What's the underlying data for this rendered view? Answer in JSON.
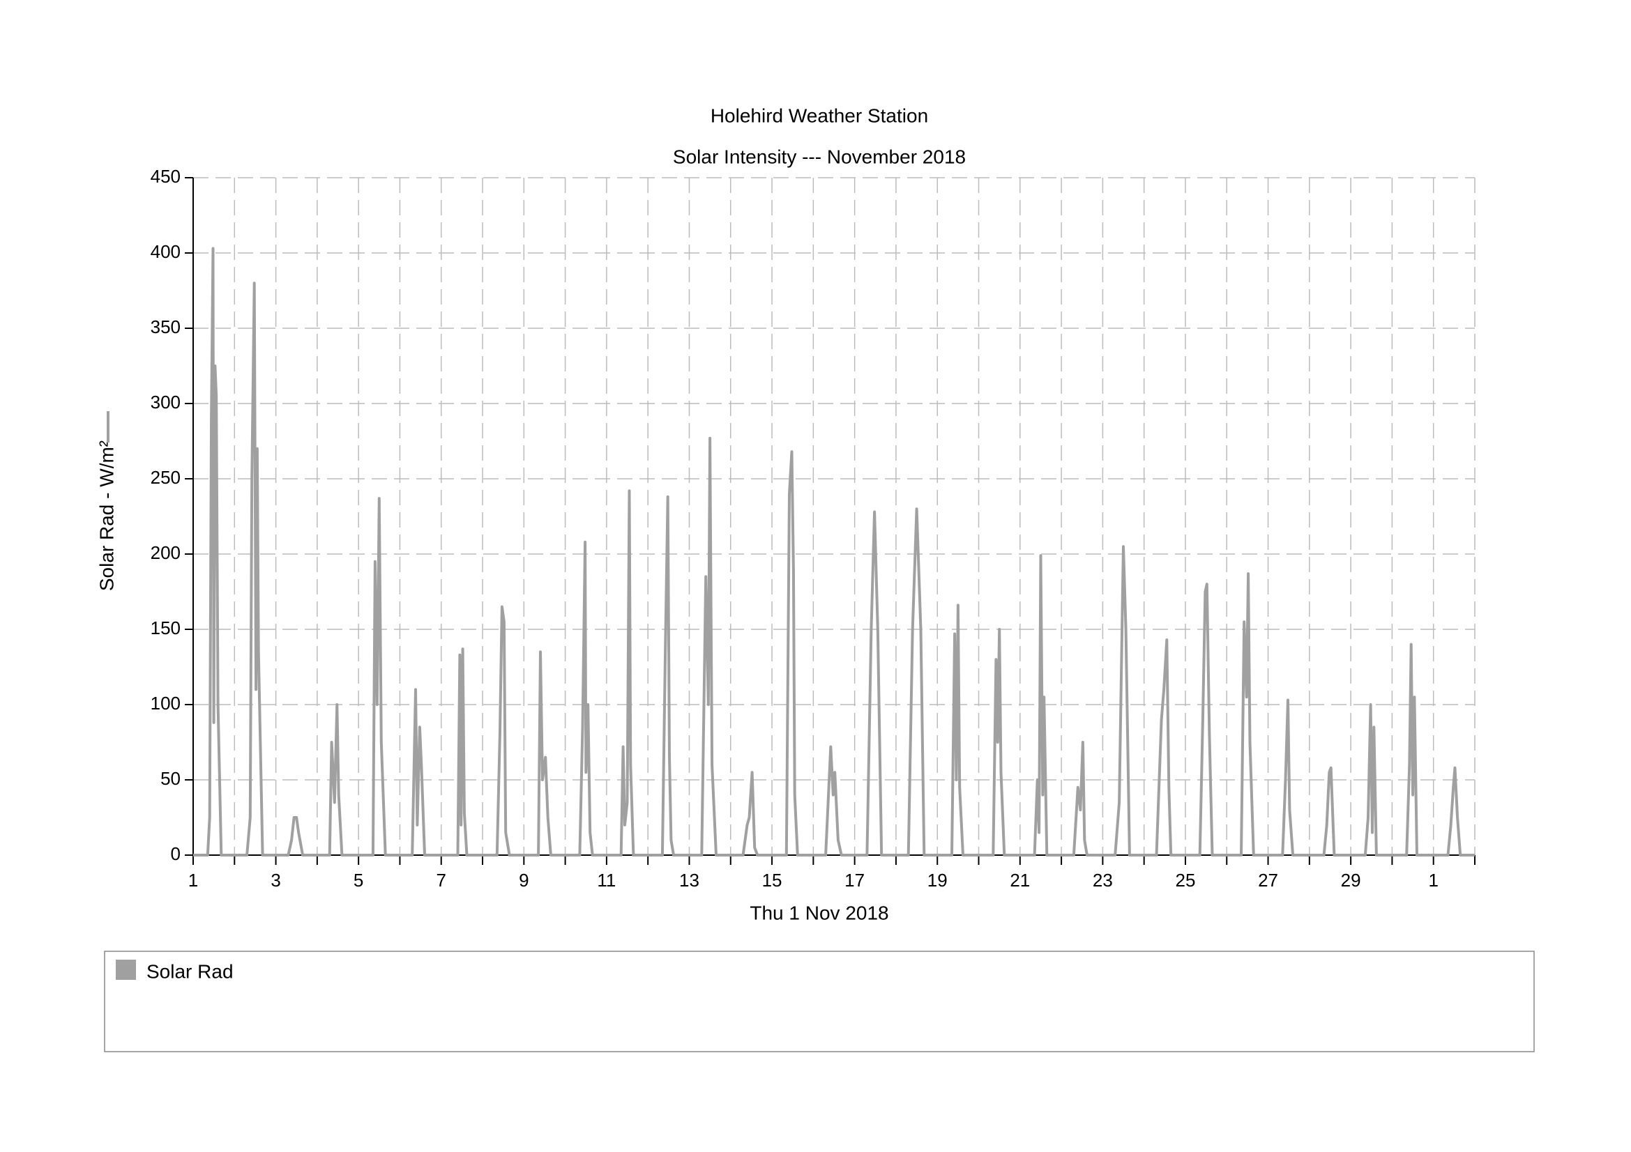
{
  "chart_data": {
    "type": "line",
    "title": "Holehird Weather Station",
    "subtitle": "Solar Intensity --- November 2018",
    "xlabel": "Thu 1 Nov 2018",
    "ylabel": "Solar Rad - W/m²",
    "x": [
      1,
      1.35,
      1.4,
      1.44,
      1.48,
      1.5,
      1.53,
      1.56,
      1.6,
      1.68,
      2.3,
      2.38,
      2.42,
      2.48,
      2.52,
      2.55,
      2.58,
      2.68,
      3.3,
      3.38,
      3.44,
      3.5,
      3.55,
      3.65,
      4.3,
      4.35,
      4.42,
      4.48,
      4.52,
      4.6,
      5.35,
      5.4,
      5.45,
      5.5,
      5.55,
      5.65,
      6.3,
      6.38,
      6.42,
      6.48,
      6.52,
      6.6,
      7.4,
      7.45,
      7.48,
      7.52,
      7.56,
      7.62,
      8.35,
      8.42,
      8.47,
      8.52,
      8.56,
      8.65,
      9.35,
      9.4,
      9.45,
      9.52,
      9.58,
      9.65,
      10.35,
      10.42,
      10.48,
      10.5,
      10.55,
      10.6,
      10.66,
      11.35,
      11.4,
      11.44,
      11.5,
      11.55,
      11.58,
      11.65,
      12.35,
      12.42,
      12.48,
      12.52,
      12.56,
      12.62,
      13.3,
      13.4,
      13.46,
      13.5,
      13.55,
      13.65,
      14.3,
      14.4,
      14.45,
      14.52,
      14.58,
      14.65,
      15.35,
      15.42,
      15.48,
      15.52,
      15.55,
      15.62,
      16.3,
      16.42,
      16.48,
      16.52,
      16.6,
      16.68,
      17.3,
      17.4,
      17.48,
      17.56,
      17.65,
      18.3,
      18.4,
      18.5,
      18.6,
      18.68,
      19.35,
      19.42,
      19.46,
      19.5,
      19.54,
      19.62,
      20.35,
      20.42,
      20.46,
      20.5,
      20.54,
      20.62,
      21.35,
      21.42,
      21.46,
      21.5,
      21.55,
      21.58,
      21.65,
      22.3,
      22.4,
      22.46,
      22.52,
      22.56,
      22.62,
      23.3,
      23.4,
      23.5,
      23.56,
      23.65,
      24.3,
      24.42,
      24.48,
      24.55,
      24.6,
      24.65,
      25.35,
      25.42,
      25.48,
      25.52,
      25.58,
      25.65,
      26.35,
      26.42,
      26.48,
      26.52,
      26.56,
      26.65,
      27.35,
      27.42,
      27.48,
      27.52,
      27.6,
      28.35,
      28.42,
      28.48,
      28.52,
      28.6,
      29.35,
      29.42,
      29.48,
      29.52,
      29.56,
      29.62,
      30.35,
      30.42,
      30.46,
      30.5,
      30.54,
      30.6,
      31.35,
      31.42,
      31.48,
      31.52,
      31.58,
      31.65,
      32
    ],
    "series": [
      {
        "name": "Solar Rad",
        "color": "#a0a0a0",
        "values": [
          0,
          0,
          25,
          290,
          403,
          88,
          325,
          305,
          100,
          0,
          0,
          25,
          250,
          380,
          110,
          270,
          135,
          0,
          0,
          10,
          25,
          25,
          15,
          0,
          0,
          75,
          35,
          100,
          40,
          0,
          0,
          195,
          100,
          237,
          75,
          0,
          0,
          110,
          20,
          85,
          60,
          0,
          0,
          133,
          20,
          137,
          28,
          0,
          0,
          80,
          165,
          155,
          15,
          0,
          0,
          135,
          50,
          65,
          25,
          0,
          0,
          85,
          208,
          55,
          100,
          15,
          0,
          0,
          72,
          20,
          35,
          242,
          60,
          0,
          0,
          135,
          238,
          65,
          10,
          0,
          0,
          185,
          100,
          277,
          60,
          0,
          0,
          20,
          25,
          55,
          5,
          0,
          0,
          240,
          268,
          190,
          40,
          0,
          0,
          72,
          40,
          55,
          10,
          0,
          0,
          150,
          228,
          150,
          0,
          0,
          150,
          230,
          150,
          0,
          0,
          147,
          50,
          166,
          45,
          0,
          0,
          130,
          75,
          150,
          55,
          0,
          0,
          50,
          15,
          199,
          40,
          105,
          0,
          0,
          45,
          30,
          75,
          10,
          0,
          0,
          35,
          205,
          150,
          0,
          0,
          90,
          110,
          143,
          45,
          0,
          0,
          90,
          175,
          180,
          80,
          0,
          0,
          155,
          105,
          187,
          75,
          0,
          0,
          50,
          103,
          30,
          0,
          0,
          20,
          55,
          58,
          0,
          0,
          25,
          100,
          15,
          85,
          0,
          0,
          60,
          140,
          40,
          105,
          0,
          0,
          20,
          45,
          58,
          25,
          0,
          0
        ]
      }
    ],
    "xlim": [
      1,
      32
    ],
    "ylim": [
      0,
      450
    ],
    "xticks": [
      1,
      3,
      5,
      7,
      9,
      11,
      13,
      15,
      17,
      19,
      21,
      23,
      25,
      27,
      29,
      {
        "value": 31,
        "label": "1"
      }
    ],
    "xminorticks": [
      2,
      4,
      6,
      8,
      10,
      12,
      14,
      16,
      18,
      20,
      22,
      24,
      26,
      28,
      30,
      32
    ],
    "yticks": [
      0,
      50,
      100,
      150,
      200,
      250,
      300,
      350,
      400,
      450
    ],
    "grid": true,
    "legend": "bottom"
  }
}
